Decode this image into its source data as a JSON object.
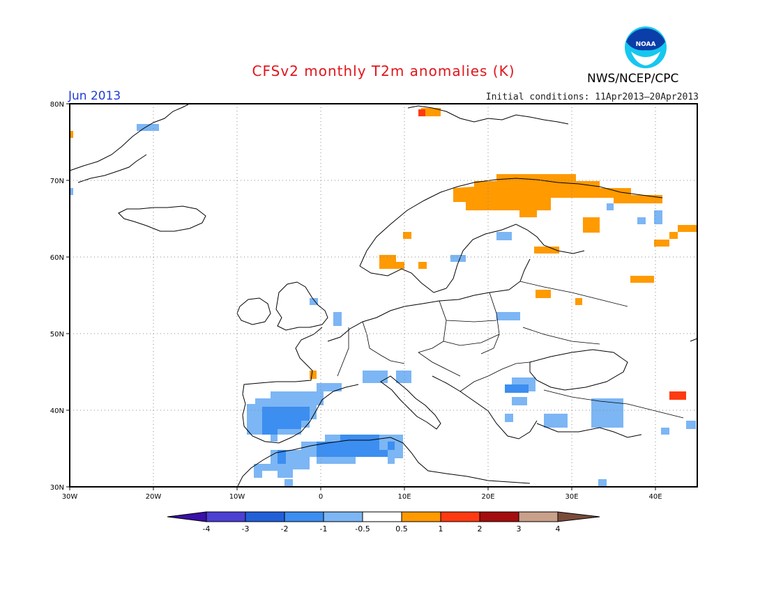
{
  "title": "CFSv2 monthly T2m anomalies (K)",
  "month_label": "Jun 2013",
  "initial_conditions": "Initial conditions: 11Apr2013–20Apr2013",
  "agency": "NWS/NCEP/CPC",
  "logo": {
    "text": "NOAA",
    "icon": "noaa-logo-icon"
  },
  "map": {
    "lon_range": [
      -30,
      45
    ],
    "lat_range": [
      30,
      80
    ],
    "lat_labels": [
      "30N",
      "40N",
      "50N",
      "60N",
      "70N",
      "80N"
    ],
    "lon_labels": [
      "30W",
      "20W",
      "10W",
      "0",
      "10E",
      "20E",
      "30E",
      "40E"
    ],
    "grid": "dotted"
  },
  "colorbar": {
    "ticks": [
      "-4",
      "-3",
      "-2",
      "-1",
      "-0.5",
      "0.5",
      "1",
      "2",
      "3",
      "4"
    ],
    "colors": [
      "#3a10a8",
      "#4c3fd3",
      "#2260d8",
      "#3c8ef0",
      "#7cb6f4",
      "#ffffff",
      "#ff9a00",
      "#ff3a10",
      "#a50e0e",
      "#c9a08a",
      "#7a4b3a"
    ]
  },
  "chart_data": {
    "type": "heatmap",
    "variable": "T2m anomaly (K)",
    "period": "Jun 2013",
    "cells": [
      {
        "lon": -21,
        "lat": 77,
        "class": "-1 to -0.5"
      },
      {
        "lon": -29.5,
        "lat": 76,
        "class": "0.5 to 1"
      },
      {
        "lon": -29.5,
        "lat": 68.5,
        "class": "-1 to -0.5"
      },
      {
        "lon": 13.5,
        "lat": 79,
        "class": "0.5 to 1"
      },
      {
        "lon": 12,
        "lat": 79.3,
        "class": "1 to 2"
      },
      {
        "lon": 24,
        "lat": 69,
        "class": "0.5 to 1"
      },
      {
        "lon": 36,
        "lat": 67.5,
        "class": "0.5 to 1"
      },
      {
        "lon": 10,
        "lat": 63,
        "class": "0.5 to 1"
      },
      {
        "lon": 8.5,
        "lat": 59.5,
        "class": "0.5 to 1"
      },
      {
        "lon": 12,
        "lat": 59,
        "class": "0.5 to 1"
      },
      {
        "lon": 27,
        "lat": 61.2,
        "class": "0.5 to 1"
      },
      {
        "lon": 33,
        "lat": 64.2,
        "class": "0.5 to 1"
      },
      {
        "lon": 40.5,
        "lat": 61.8,
        "class": "0.5 to 1"
      },
      {
        "lon": 44,
        "lat": 63.8,
        "class": "0.5 to 1"
      },
      {
        "lon": 38,
        "lat": 57.2,
        "class": "0.5 to 1"
      },
      {
        "lon": 26.5,
        "lat": 55.2,
        "class": "0.5 to 1"
      },
      {
        "lon": 31,
        "lat": 54.3,
        "class": "0.5 to 1"
      },
      {
        "lon": -1,
        "lat": 44.6,
        "class": "0.5 to 1"
      },
      {
        "lon": 43,
        "lat": 42.1,
        "class": "1 to 2"
      },
      {
        "lon": 22,
        "lat": 63,
        "class": "-1 to -0.5"
      },
      {
        "lon": 16.5,
        "lat": 60,
        "class": "-1 to -0.5"
      },
      {
        "lon": 41,
        "lat": 65,
        "class": "-1 to -0.5"
      },
      {
        "lon": -1,
        "lat": 54,
        "class": "-1 to -0.5"
      },
      {
        "lon": 2,
        "lat": 52,
        "class": "-1 to -0.5"
      },
      {
        "lon": 22,
        "lat": 52,
        "class": "-1 to -0.5"
      },
      {
        "lon": -5.5,
        "lat": 39,
        "class": "-2 to -1"
      },
      {
        "lon": 3,
        "lat": 35,
        "class": "-2 to -1"
      },
      {
        "lon": 6.5,
        "lat": 44,
        "class": "-1 to -0.5"
      },
      {
        "lon": 23.5,
        "lat": 43,
        "class": "-1 to -0.5"
      },
      {
        "lon": 35,
        "lat": 38.5,
        "class": "-1 to -0.5"
      },
      {
        "lon": 28,
        "lat": 38,
        "class": "-1 to -0.5"
      }
    ]
  }
}
